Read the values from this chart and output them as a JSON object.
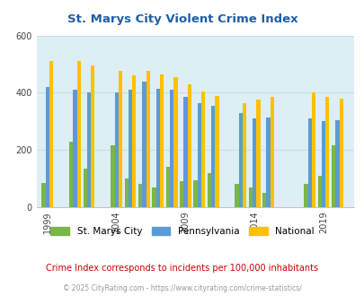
{
  "title": "St. Marys City Violent Crime Index",
  "subtitle": "Crime Index corresponds to incidents per 100,000 inhabitants",
  "copyright": "© 2025 CityRating.com - https://www.cityrating.com/crime-statistics/",
  "years": [
    1999,
    2001,
    2002,
    2004,
    2005,
    2006,
    2007,
    2008,
    2009,
    2010,
    2011,
    2013,
    2014,
    2015,
    2018,
    2019,
    2020
  ],
  "st_marys": [
    85,
    230,
    135,
    215,
    100,
    80,
    70,
    140,
    90,
    95,
    120,
    80,
    70,
    50,
    80,
    110,
    215
  ],
  "pennsylvania": [
    420,
    410,
    400,
    400,
    410,
    440,
    415,
    410,
    385,
    365,
    355,
    330,
    310,
    315,
    310,
    300,
    305
  ],
  "national": [
    510,
    510,
    495,
    475,
    460,
    475,
    465,
    455,
    430,
    405,
    390,
    365,
    375,
    385,
    400,
    385,
    380
  ],
  "color_st_marys": "#7ab648",
  "color_pennsylvania": "#5b9bd5",
  "color_national": "#ffc000",
  "background_plot": "#ddeef5",
  "ylim": [
    0,
    600
  ],
  "yticks": [
    0,
    200,
    400,
    600
  ],
  "xticks": [
    1999,
    2004,
    2009,
    2014,
    2019
  ],
  "title_color": "#1f5fa6",
  "subtitle_color": "#cc0000",
  "copyright_color": "#999999",
  "bar_width": 0.28,
  "legend_labels": [
    "St. Marys City",
    "Pennsylvania",
    "National"
  ]
}
